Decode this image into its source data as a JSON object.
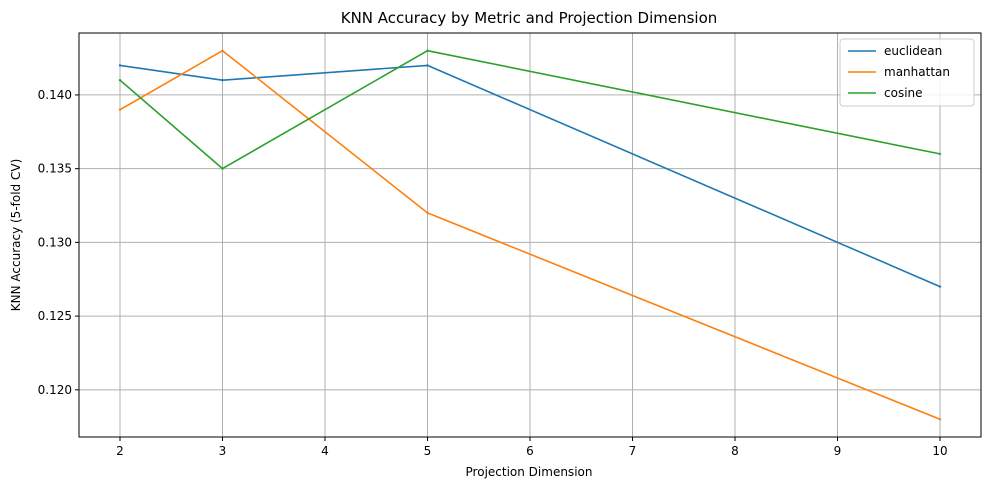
{
  "chart_data": {
    "type": "line",
    "title": "KNN Accuracy by Metric and Projection Dimension",
    "xlabel": "Projection Dimension",
    "ylabel": "KNN Accuracy (5-fold CV)",
    "x": [
      2,
      3,
      5,
      10
    ],
    "xticks": [
      2,
      3,
      4,
      5,
      6,
      7,
      8,
      9,
      10
    ],
    "xlim": [
      1.6,
      10.4
    ],
    "yticks": [
      0.12,
      0.125,
      0.13,
      0.135,
      0.14
    ],
    "ytick_labels": [
      "0.120",
      "0.125",
      "0.130",
      "0.135",
      "0.140"
    ],
    "ylim": [
      0.1168,
      0.1442
    ],
    "grid": true,
    "legend_position": "top-right",
    "series": [
      {
        "name": "euclidean",
        "color": "#1f77b4",
        "values": [
          0.142,
          0.141,
          0.142,
          0.127
        ]
      },
      {
        "name": "manhattan",
        "color": "#ff7f0e",
        "values": [
          0.139,
          0.143,
          0.132,
          0.118
        ]
      },
      {
        "name": "cosine",
        "color": "#2ca02c",
        "values": [
          0.141,
          0.135,
          0.143,
          0.136
        ]
      }
    ]
  }
}
